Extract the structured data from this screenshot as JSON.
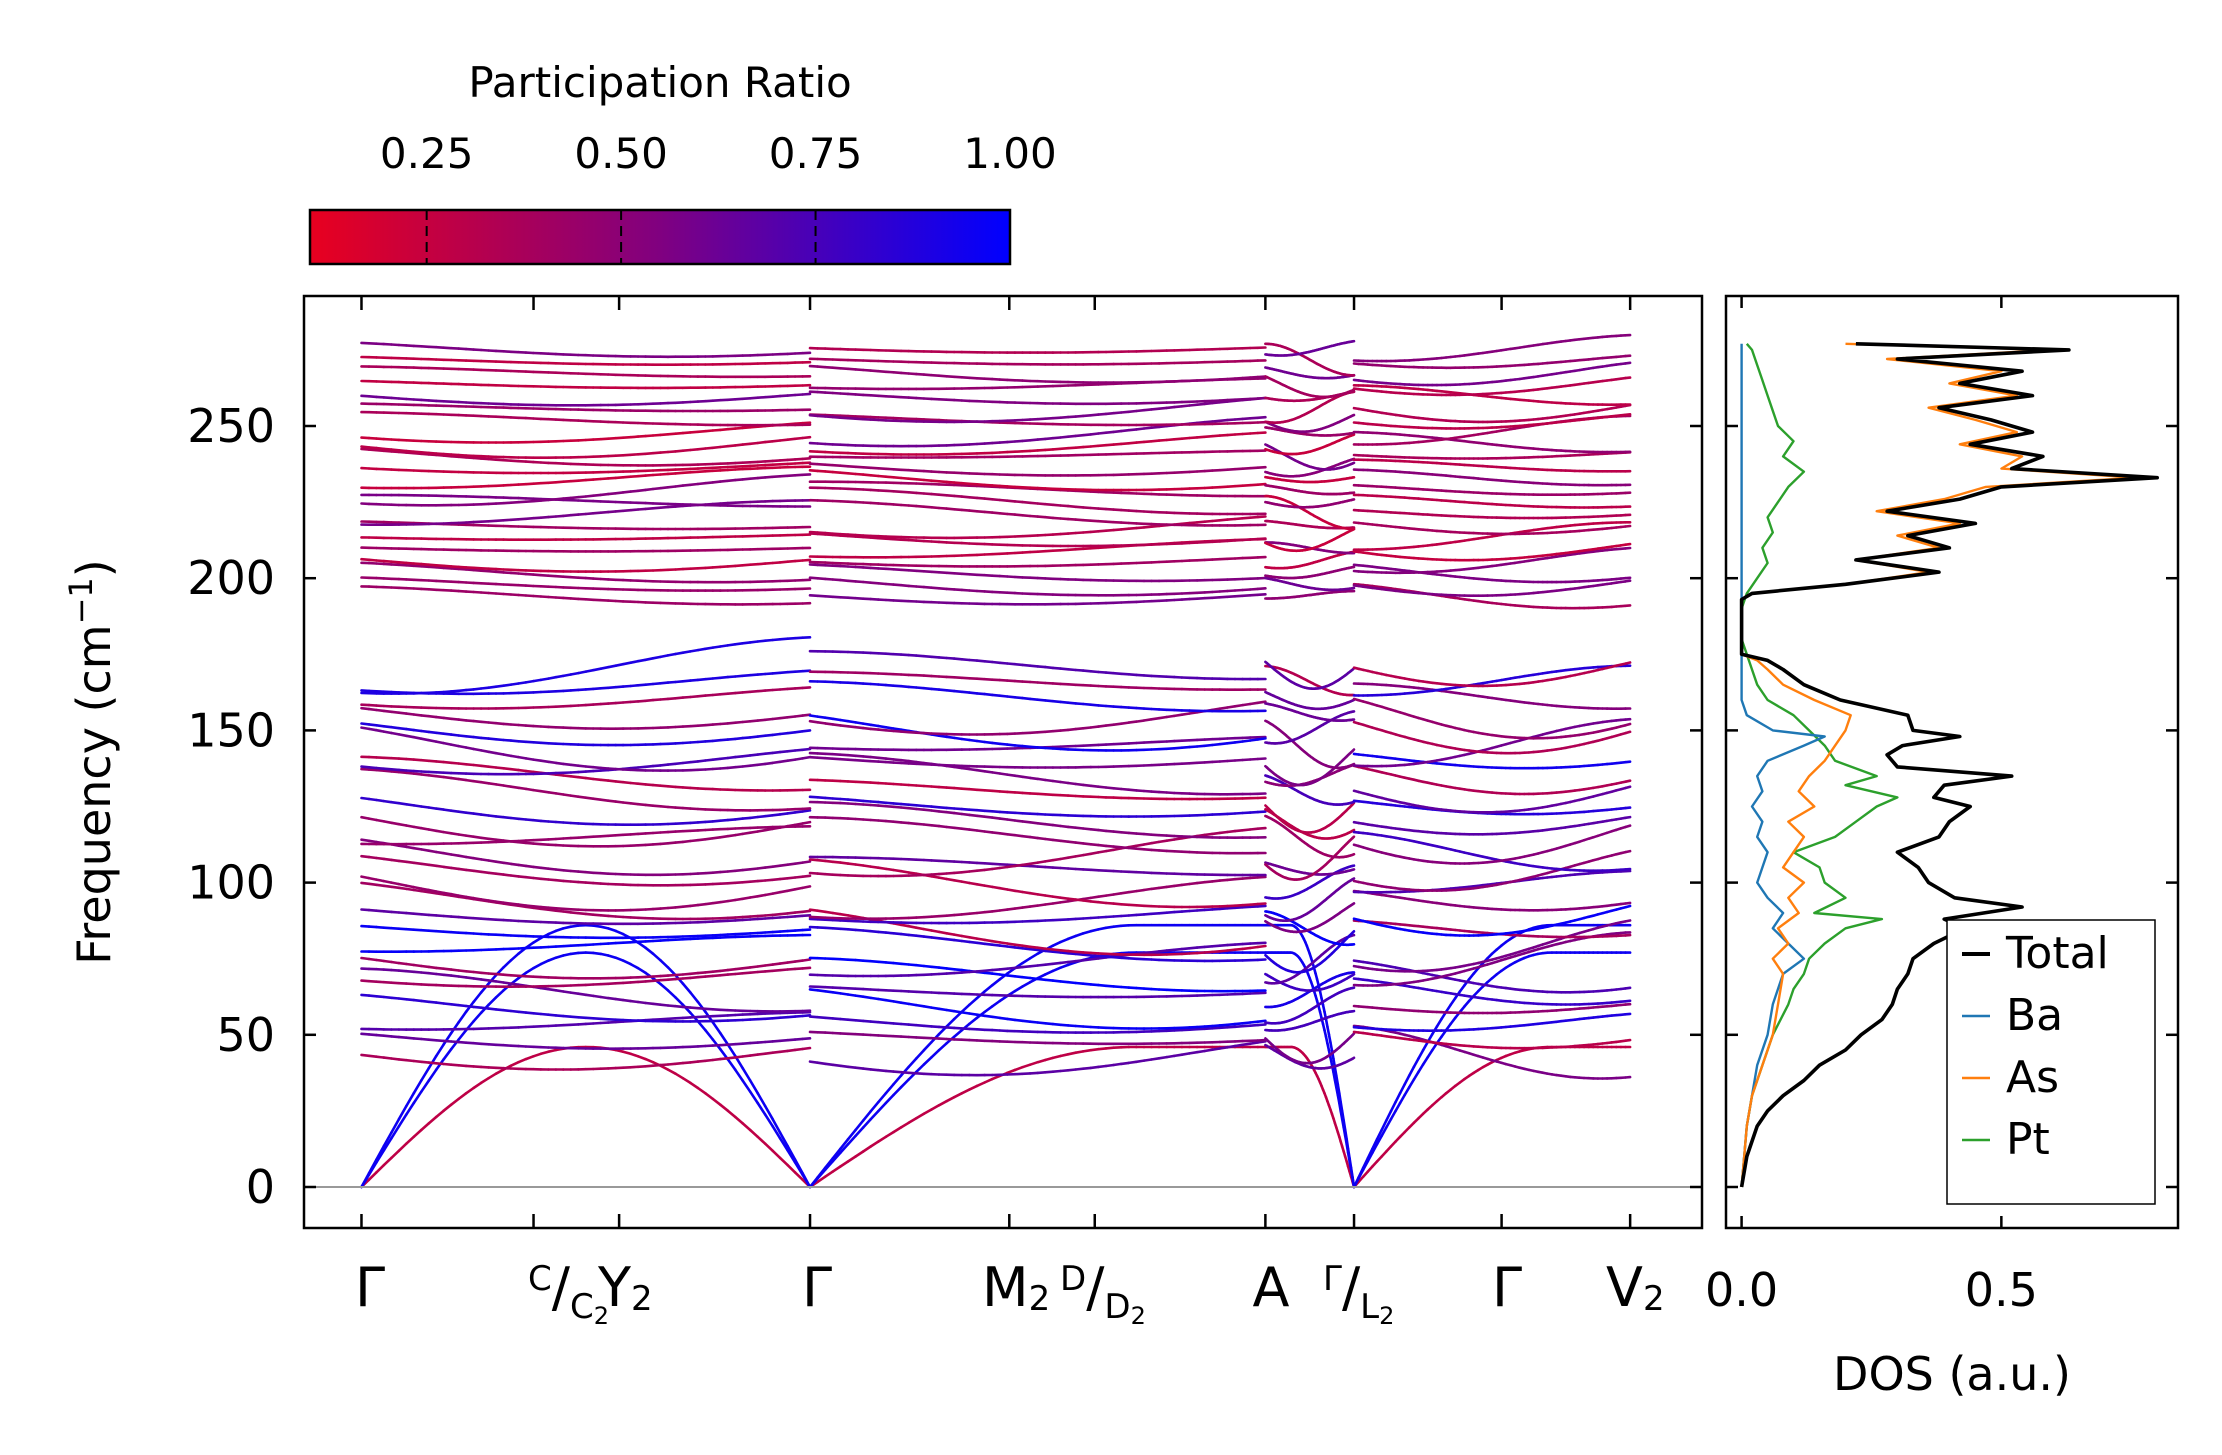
{
  "chart_data": [
    {
      "type": "line",
      "title": "",
      "ylabel": "Frequency (cm",
      "ylabel_sup": "−1",
      "ylabel_end": ")",
      "ylim": [
        -14,
        292
      ],
      "yticks": [
        0,
        50,
        100,
        150,
        200,
        250
      ],
      "xlim": [
        -0.0448,
        1.0448
      ],
      "high_symmetry_points": [
        {
          "pos": 0.0,
          "label": "Γ"
        },
        {
          "pos": 0.1341,
          "label": "C/C₂"
        },
        {
          "pos": 0.2008,
          "label": "Y₂"
        },
        {
          "pos": 0.3496,
          "label": "Γ"
        },
        {
          "pos": 0.5049,
          "label": "M₂"
        },
        {
          "pos": 0.5715,
          "label": "D/D₂"
        },
        {
          "pos": 0.7045,
          "label": "A"
        },
        {
          "pos": 0.7736,
          "label": "Γ/L₂"
        },
        {
          "pos": 0.8886,
          "label": "Γ"
        },
        {
          "pos": 0.9888,
          "label": "V₂"
        }
      ],
      "x_tick_labels": {
        "gamma": "Γ",
        "c_sup": "C",
        "c_sub_main": "C",
        "c_sub_idx": "2",
        "y_main": "Y",
        "y_idx": "2",
        "m_main": "M",
        "m_idx": "2",
        "d_sup": "D",
        "d_sub_main": "D",
        "d_sub_idx": "2",
        "a": "A",
        "gl_sup": "Γ",
        "gl_sub_main": "L",
        "gl_sub_idx": "2",
        "v_main": "V",
        "v_idx": "2"
      },
      "segments": [
        [
          0.0,
          0.3496
        ],
        [
          0.3496,
          0.7045
        ],
        [
          0.7045,
          0.7736
        ],
        [
          0.7736,
          0.9888
        ]
      ],
      "color_mapping": "participation ratio: red (low) to blue (high)",
      "bands": {
        "acoustic_gamma_zero": [
          0,
          0.3496,
          0.7736,
          0.8886
        ],
        "acoustic_plateau_at_C_Y": [
          46,
          77,
          86
        ],
        "lower_manifold_range": [
          43,
          175
        ],
        "upper_manifold_range": [
          193,
          278
        ],
        "gap_range": [
          175,
          193
        ]
      }
    },
    {
      "type": "colorbar",
      "title": "Participation Ratio",
      "range": [
        0.1,
        1.0
      ],
      "ticks": [
        0.25,
        0.5,
        0.75,
        1.0
      ],
      "tick_labels": [
        "0.25",
        "0.50",
        "0.75",
        "1.00"
      ],
      "color_low": "#e8001f",
      "color_mid": "#800080",
      "color_high": "#0000ff"
    },
    {
      "type": "line",
      "orientation": "horizontal-values",
      "xlabel": "DOS (a.u.)",
      "xlim": [
        -0.03,
        0.84
      ],
      "xticks": [
        0.0,
        0.5
      ],
      "xtick_labels": [
        "0.0",
        "0.5"
      ],
      "ylim": [
        -14,
        292
      ],
      "series": [
        {
          "name": "Total",
          "color": "#000000",
          "freq": [
            0,
            5,
            10,
            15,
            20,
            25,
            30,
            35,
            40,
            45,
            50,
            55,
            60,
            65,
            70,
            75,
            80,
            85,
            88,
            92,
            95,
            100,
            105,
            110,
            115,
            120,
            125,
            128,
            132,
            135,
            138,
            142,
            145,
            148,
            150,
            155,
            160,
            165,
            170,
            173,
            175,
            180,
            185,
            190,
            193,
            195,
            198,
            202,
            206,
            210,
            214,
            218,
            222,
            226,
            230,
            233,
            236,
            240,
            244,
            248,
            252,
            256,
            260,
            264,
            268,
            272,
            275,
            277
          ],
          "dos": [
            0.0,
            0.005,
            0.01,
            0.02,
            0.03,
            0.05,
            0.08,
            0.12,
            0.15,
            0.2,
            0.23,
            0.27,
            0.29,
            0.3,
            0.32,
            0.33,
            0.37,
            0.43,
            0.39,
            0.54,
            0.41,
            0.36,
            0.34,
            0.3,
            0.38,
            0.4,
            0.44,
            0.37,
            0.39,
            0.52,
            0.3,
            0.28,
            0.31,
            0.42,
            0.33,
            0.32,
            0.19,
            0.12,
            0.08,
            0.05,
            0.0,
            0.0,
            0.0,
            0.0,
            0.0,
            0.02,
            0.2,
            0.38,
            0.22,
            0.4,
            0.32,
            0.45,
            0.28,
            0.42,
            0.5,
            0.8,
            0.52,
            0.58,
            0.44,
            0.56,
            0.48,
            0.38,
            0.56,
            0.42,
            0.54,
            0.3,
            0.63,
            0.22
          ]
        },
        {
          "name": "Ba",
          "color": "#1f77b4",
          "freq": [
            0,
            10,
            20,
            30,
            40,
            50,
            60,
            70,
            75,
            80,
            85,
            90,
            95,
            100,
            105,
            110,
            115,
            120,
            125,
            130,
            135,
            140,
            145,
            148,
            150,
            155,
            160,
            170,
            175,
            200,
            250,
            270,
            277
          ],
          "dos": [
            0.0,
            0.005,
            0.01,
            0.02,
            0.03,
            0.05,
            0.06,
            0.08,
            0.12,
            0.09,
            0.06,
            0.08,
            0.05,
            0.03,
            0.04,
            0.05,
            0.03,
            0.04,
            0.02,
            0.04,
            0.03,
            0.05,
            0.12,
            0.16,
            0.06,
            0.01,
            0.0,
            0.0,
            0.0,
            0.0,
            0.0,
            0.0,
            0.0
          ]
        },
        {
          "name": "As",
          "color": "#ff7f0e",
          "freq": [
            0,
            10,
            20,
            30,
            40,
            50,
            60,
            70,
            75,
            80,
            85,
            90,
            95,
            100,
            105,
            110,
            115,
            120,
            125,
            130,
            135,
            140,
            145,
            150,
            155,
            160,
            165,
            170,
            173,
            175,
            180,
            185,
            190,
            193,
            195,
            198,
            202,
            206,
            210,
            214,
            218,
            222,
            226,
            230,
            233,
            236,
            240,
            244,
            248,
            252,
            256,
            260,
            264,
            268,
            272,
            275,
            277
          ],
          "dos": [
            0.0,
            0.005,
            0.01,
            0.02,
            0.04,
            0.06,
            0.07,
            0.08,
            0.06,
            0.09,
            0.07,
            0.11,
            0.09,
            0.12,
            0.08,
            0.1,
            0.12,
            0.09,
            0.14,
            0.11,
            0.13,
            0.16,
            0.18,
            0.2,
            0.21,
            0.14,
            0.08,
            0.05,
            0.03,
            0.0,
            0.0,
            0.0,
            0.0,
            0.0,
            0.02,
            0.2,
            0.36,
            0.22,
            0.38,
            0.3,
            0.42,
            0.26,
            0.39,
            0.47,
            0.76,
            0.5,
            0.54,
            0.42,
            0.53,
            0.45,
            0.36,
            0.53,
            0.4,
            0.5,
            0.28,
            0.6,
            0.2
          ]
        },
        {
          "name": "Pt",
          "color": "#2ca02c",
          "freq": [
            0,
            10,
            20,
            30,
            40,
            50,
            60,
            65,
            70,
            75,
            80,
            85,
            88,
            90,
            95,
            100,
            105,
            110,
            115,
            120,
            125,
            128,
            132,
            135,
            140,
            145,
            150,
            155,
            160,
            165,
            170,
            175,
            180,
            190,
            195,
            200,
            205,
            210,
            215,
            220,
            225,
            230,
            235,
            240,
            245,
            250,
            255,
            260,
            265,
            270,
            275,
            277
          ],
          "dos": [
            0.0,
            0.005,
            0.01,
            0.02,
            0.04,
            0.06,
            0.09,
            0.1,
            0.12,
            0.13,
            0.16,
            0.2,
            0.27,
            0.14,
            0.2,
            0.16,
            0.15,
            0.1,
            0.18,
            0.22,
            0.26,
            0.3,
            0.2,
            0.26,
            0.18,
            0.16,
            0.13,
            0.1,
            0.05,
            0.03,
            0.02,
            0.01,
            0.0,
            0.0,
            0.01,
            0.03,
            0.05,
            0.04,
            0.06,
            0.05,
            0.07,
            0.09,
            0.12,
            0.08,
            0.1,
            0.07,
            0.06,
            0.05,
            0.04,
            0.03,
            0.02,
            0.01
          ]
        }
      ],
      "legend": {
        "placement": "bottom-right",
        "entries": [
          "Total",
          "Ba",
          "As",
          "Pt"
        ]
      }
    }
  ]
}
